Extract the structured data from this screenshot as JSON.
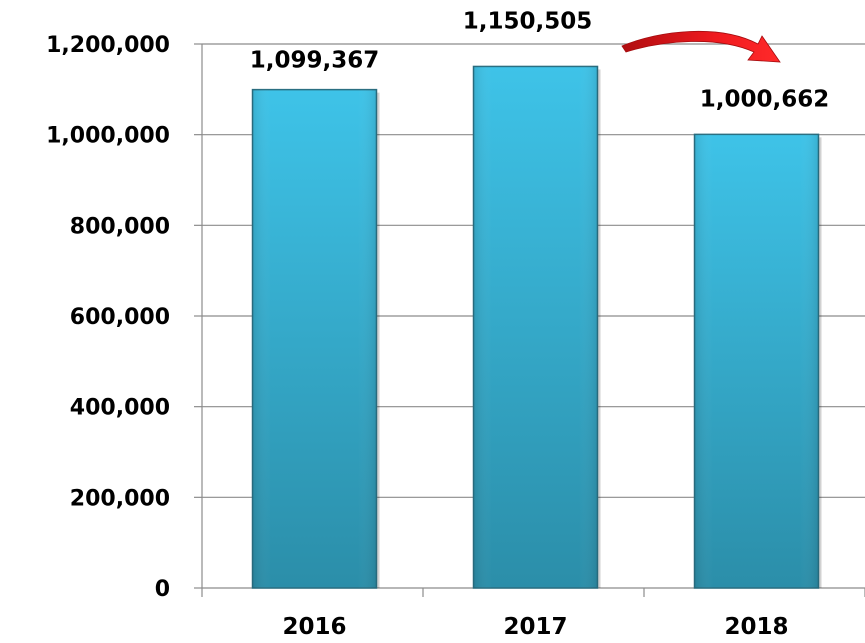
{
  "chart_data": {
    "type": "bar",
    "title": "",
    "xlabel": "",
    "ylabel": "",
    "categories": [
      "2016",
      "2017",
      "2018"
    ],
    "values": [
      1099367,
      1150505,
      1000662
    ],
    "data_labels": [
      "1,099,367",
      "1,150,505",
      "1,000,662"
    ],
    "ylim": [
      0,
      1200000
    ],
    "y_ticks": [
      0,
      200000,
      400000,
      600000,
      800000,
      1000000,
      1200000
    ],
    "y_tick_labels": [
      "0",
      "200,000",
      "400,000",
      "600,000",
      "800,000",
      "1,000,000",
      "1,200,000"
    ],
    "grid": true,
    "legend": "none",
    "annotations": [
      {
        "type": "arrow",
        "from_category": "2017",
        "to_category": "2018",
        "color": "#e8141a"
      }
    ],
    "colors": {
      "bar_top": "#3ec3e8",
      "bar_bottom": "#2b8ea9",
      "bar_edge": "#2a6f82",
      "grid": "#8c8c8c",
      "arrow": "#e8141a"
    }
  }
}
